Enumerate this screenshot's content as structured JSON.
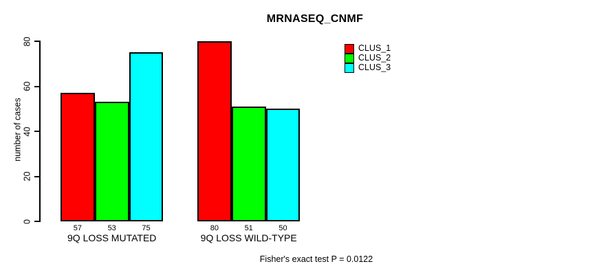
{
  "chart_data": {
    "type": "bar",
    "title": "MRNASEQ_CNMF",
    "ylabel": "number of cases",
    "xlabel": "",
    "categories": [
      "9Q LOSS MUTATED",
      "9Q LOSS WILD-TYPE"
    ],
    "series": [
      {
        "name": "CLUS_1",
        "color": "#ff0000",
        "values": [
          57,
          80
        ]
      },
      {
        "name": "CLUS_2",
        "color": "#00ff00",
        "values": [
          53,
          51
        ]
      },
      {
        "name": "CLUS_3",
        "color": "#00ffff",
        "values": [
          75,
          50
        ]
      }
    ],
    "bar_value_labels_shown": true,
    "yticks": [
      0,
      20,
      40,
      60,
      80
    ],
    "ylim": [
      0,
      80
    ],
    "grid": false,
    "legend_position": "top-right-inside",
    "annotation": "Fisher's exact test P = 0.0122"
  },
  "colors": {
    "background": "#ffffff",
    "axis": "#000000",
    "bar_border": "#000000",
    "text": "#000000"
  }
}
